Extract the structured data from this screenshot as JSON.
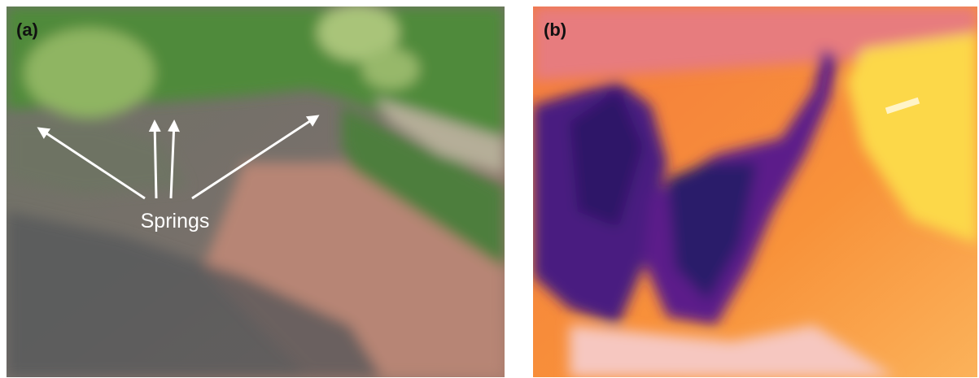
{
  "panels": [
    {
      "label": "(a)",
      "annotation": "Springs"
    },
    {
      "label": "(b)"
    }
  ]
}
